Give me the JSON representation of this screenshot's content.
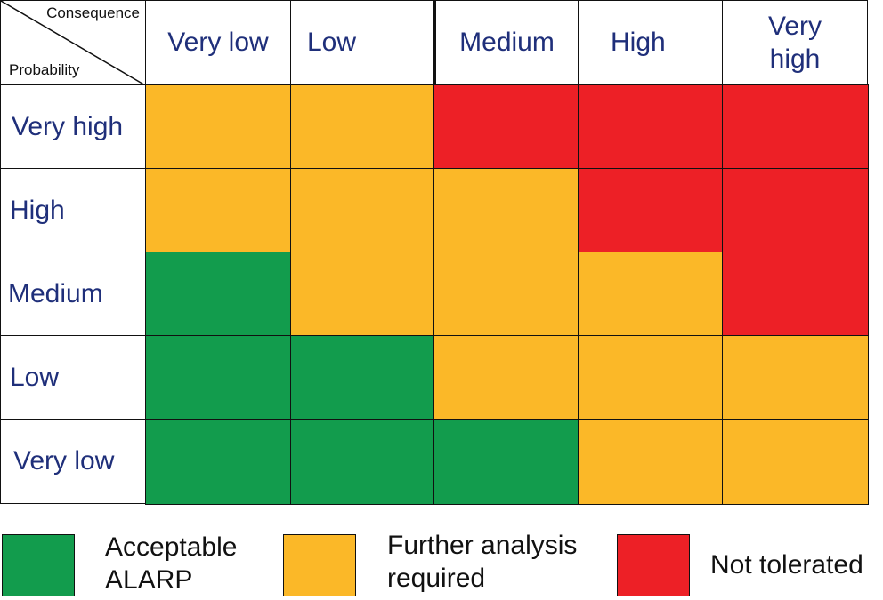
{
  "matrix": {
    "corner": {
      "consequence_label": "Consequence",
      "probability_label": "Probability"
    },
    "columns": [
      {
        "label": "Very low"
      },
      {
        "label": "Low"
      },
      {
        "label": "Medium"
      },
      {
        "label": "High"
      },
      {
        "label_line1": "Very",
        "label_line2": "high"
      }
    ],
    "rows": [
      {
        "label": "Very high",
        "levels": [
          "amber",
          "amber",
          "red",
          "red",
          "red"
        ]
      },
      {
        "label": "High",
        "levels": [
          "amber",
          "amber",
          "amber",
          "red",
          "red"
        ]
      },
      {
        "label": "Medium",
        "levels": [
          "green",
          "amber",
          "amber",
          "amber",
          "red"
        ]
      },
      {
        "label": "Low",
        "levels": [
          "green",
          "green",
          "amber",
          "amber",
          "amber"
        ]
      },
      {
        "label": "Very low",
        "levels": [
          "green",
          "green",
          "green",
          "amber",
          "amber"
        ]
      }
    ]
  },
  "colors": {
    "green": "#129c4d",
    "amber": "#fbb828",
    "red": "#ed2026",
    "header_text": "#1f2f7a"
  },
  "legend": {
    "acceptable": {
      "line1": "Acceptable",
      "line2": "ALARP"
    },
    "further": {
      "line1": "Further analysis",
      "line2": "required"
    },
    "not_tolerated": {
      "label": "Not tolerated"
    }
  }
}
